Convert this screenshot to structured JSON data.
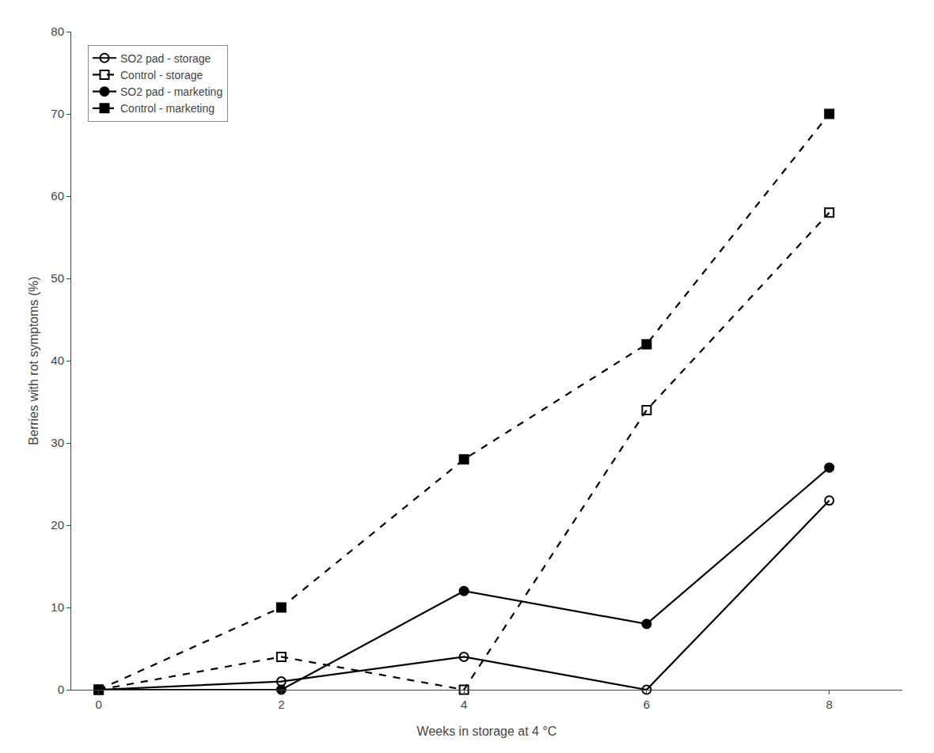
{
  "chart_data": {
    "type": "line",
    "xlabel": "Weeks in storage at 4 °C",
    "ylabel": "Berries with rot symptoms (%)",
    "x": [
      0,
      2,
      4,
      6,
      8
    ],
    "series": [
      {
        "name": "SO2 pad - storage",
        "color": "#000000",
        "marker": "circle-open",
        "line_style": "solid",
        "values": [
          0,
          1,
          4,
          0,
          23
        ]
      },
      {
        "name": "Control - storage",
        "color": "#000000",
        "marker": "square-open",
        "line_style": "dashed",
        "values": [
          0,
          4,
          0,
          34,
          58
        ]
      },
      {
        "name": "SO2 pad - marketing",
        "color": "#000000",
        "marker": "circle",
        "line_style": "solid",
        "values": [
          0,
          0,
          12,
          8,
          27
        ]
      },
      {
        "name": "Control - marketing",
        "color": "#000000",
        "marker": "square",
        "line_style": "dashed",
        "values": [
          0,
          10,
          28,
          42,
          70
        ]
      }
    ],
    "xlim": [
      -0.3,
      8.8
    ],
    "ylim": [
      0,
      80
    ],
    "xticks": [
      0,
      2,
      4,
      6,
      8
    ],
    "yticks": [
      0,
      10,
      20,
      30,
      40,
      50,
      60,
      70,
      80
    ],
    "grid": false,
    "legend": "upper left"
  }
}
